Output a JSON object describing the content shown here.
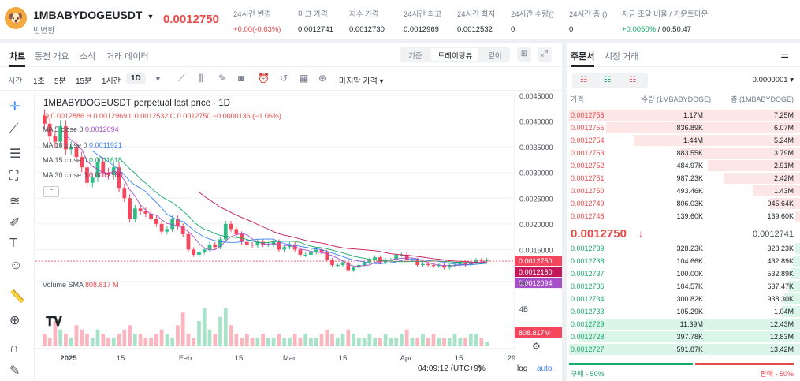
{
  "header": {
    "logo_icon": "doge-face-icon",
    "symbol": "1MBABYDOGEUSDT",
    "subtitle": "빈번한",
    "last_price": "0.0012750",
    "stats": [
      {
        "label": "24시간 변경",
        "value": "+0.00(-0.63%)",
        "color": "red"
      },
      {
        "label": "마크 가격",
        "value": "0.0012741",
        "color": ""
      },
      {
        "label": "지수 가격",
        "value": "0.0012730",
        "color": ""
      },
      {
        "label": "24시간 최고",
        "value": "0.0012969",
        "color": ""
      },
      {
        "label": "24시간 최저",
        "value": "0.0012532",
        "color": ""
      },
      {
        "label": "24시간 수량()",
        "value": "0",
        "color": ""
      },
      {
        "label": "24시간 총 ()",
        "value": "0",
        "color": ""
      },
      {
        "label": "자금 조달 비율 / 카운트다운",
        "value": "+0.0050%",
        "value2": " / 00:50:47",
        "color": "green"
      }
    ]
  },
  "chart_tabs": [
    "차트",
    "동전 개요",
    "소식",
    "거래 데이터"
  ],
  "view_modes": [
    "기준",
    "트레이딩뷰",
    "깊이"
  ],
  "intervals": [
    "시간",
    "1초",
    "5분",
    "15분",
    "1시간",
    "1D"
  ],
  "price_type": "마지막 가격",
  "legend": {
    "title": "1MBABYDOGEUSDT perpetual last price · 1D",
    "ohlc": "O 0.0012886  H 0.0012969  L 0.0012532  C 0.0012750  −0.0000136 (−1.06%)",
    "ma5": "MA 5 close 0",
    "ma5v": "0.0012094",
    "ma10": "MA 10 close 0",
    "ma10v": "0.0011921",
    "ma15": "MA 15 close 0",
    "ma15v": "0.0011618",
    "ma30": "MA 30 close 0",
    "ma30v": "0.0012180",
    "volume": "Volume SMA",
    "volumev": "808.817 M"
  },
  "chart_data": {
    "type": "candlestick",
    "y_ticks": [
      "0.0045000",
      "0.0040000",
      "0.0035000",
      "0.0030000",
      "0.0025000",
      "0.0020000",
      "0.0015000"
    ],
    "ylim": [
      0.001,
      0.0045
    ],
    "x_ticks": [
      "2025",
      "15",
      "Feb",
      "15",
      "Mar",
      "15",
      "Apr",
      "15",
      "29"
    ],
    "last_label": "0.0012750",
    "ma30_label": "0.0012180",
    "ma5_label": "0.0012094",
    "vol_label": "808.817M",
    "vol_ticks": [
      "8B",
      "4B"
    ],
    "closes": [
      0.00395,
      0.0037,
      0.0036,
      0.0039,
      0.00345,
      0.0035,
      0.0033,
      0.0031,
      0.0028,
      0.0029,
      0.0032,
      0.003,
      0.00295,
      0.0031,
      0.0027,
      0.0025,
      0.0021,
      0.0023,
      0.00225,
      0.0022,
      0.0021,
      0.002,
      0.00185,
      0.0019,
      0.0021,
      0.00195,
      0.0018,
      0.0015,
      0.0014,
      0.00145,
      0.0015,
      0.0016,
      0.00155,
      0.0017,
      0.002,
      0.0019,
      0.0018,
      0.00165,
      0.0016,
      0.00158,
      0.00165,
      0.0016,
      0.0016,
      0.00165,
      0.0015,
      0.00155,
      0.0016,
      0.0015,
      0.0014,
      0.0014,
      0.00145,
      0.0015,
      0.00145,
      0.0013,
      0.0012,
      0.0012,
      0.00125,
      0.0011,
      0.00115,
      0.0012,
      0.00125,
      0.0013,
      0.00135,
      0.00125,
      0.0013,
      0.0013,
      0.0014,
      0.0014,
      0.0013,
      0.0013,
      0.0012,
      0.00122,
      0.0012,
      0.00118,
      0.0012,
      0.00115,
      0.0012,
      0.0012,
      0.00125,
      0.0012,
      0.00125,
      0.0013,
      0.00128,
      0.0013
    ],
    "volumes": [
      3,
      2,
      6,
      4,
      3,
      2,
      5,
      4,
      3,
      2,
      4,
      3,
      2,
      2,
      3,
      4,
      5,
      3,
      3,
      2,
      2,
      3,
      4,
      3,
      2,
      5,
      8,
      3,
      2,
      6,
      9,
      4,
      3,
      7,
      9,
      5,
      3,
      2,
      3,
      2,
      2,
      3,
      2,
      2,
      3,
      2,
      2,
      3,
      2,
      3,
      2,
      2,
      3,
      4,
      3,
      2,
      3,
      4,
      3,
      2,
      2,
      3,
      2,
      2,
      3,
      2,
      2,
      3,
      4,
      2,
      2,
      3,
      2,
      3,
      2,
      2,
      2,
      3,
      2,
      2,
      3,
      3,
      2,
      1
    ]
  },
  "time_bar": {
    "time": "04:09:12 (UTC+9)",
    "pct": "%",
    "log": "log",
    "auto": "auto"
  },
  "orderbook": {
    "tabs": [
      "주문서",
      "시장 거래"
    ],
    "tick": "0.0000001",
    "headers": [
      "가격",
      "수량 (1MBABYDOGE)",
      "총 (1MBABYDOGE)"
    ],
    "asks": [
      {
        "p": "0.0012756",
        "q": "1.17M",
        "t": "7.25M",
        "f": 1
      },
      {
        "p": "0.0012755",
        "q": "836.89K",
        "t": "6.07M",
        "f": 0.84
      },
      {
        "p": "0.0012754",
        "q": "1.44M",
        "t": "5.24M",
        "f": 0.72
      },
      {
        "p": "0.0012753",
        "q": "883.55K",
        "t": "3.79M",
        "f": 0.52
      },
      {
        "p": "0.0012752",
        "q": "484.97K",
        "t": "2.91M",
        "f": 0.4
      },
      {
        "p": "0.0012751",
        "q": "987.23K",
        "t": "2.42M",
        "f": 0.33
      },
      {
        "p": "0.0012750",
        "q": "493.46K",
        "t": "1.43M",
        "f": 0.2
      },
      {
        "p": "0.0012749",
        "q": "806.03K",
        "t": "945.64K",
        "f": 0.13
      },
      {
        "p": "0.0012748",
        "q": "139.60K",
        "t": "139.60K",
        "f": 0.02
      }
    ],
    "mid_price": "0.0012750",
    "mid_mark": "0.0012741",
    "bids": [
      {
        "p": "0.0012739",
        "q": "328.23K",
        "t": "328.23K",
        "f": 0.02
      },
      {
        "p": "0.0012738",
        "q": "104.66K",
        "t": "432.89K",
        "f": 0.03
      },
      {
        "p": "0.0012737",
        "q": "100.00K",
        "t": "532.89K",
        "f": 0.04
      },
      {
        "p": "0.0012736",
        "q": "104.57K",
        "t": "637.47K",
        "f": 0.05
      },
      {
        "p": "0.0012734",
        "q": "300.82K",
        "t": "938.30K",
        "f": 0.07
      },
      {
        "p": "0.0012733",
        "q": "105.29K",
        "t": "1.04M",
        "f": 0.08
      },
      {
        "p": "0.0012729",
        "q": "11.39M",
        "t": "12.43M",
        "f": 0.93
      },
      {
        "p": "0.0012728",
        "q": "397.78K",
        "t": "12.83M",
        "f": 0.96
      },
      {
        "p": "0.0012727",
        "q": "591.87K",
        "t": "13.42M",
        "f": 1
      }
    ],
    "buy_ratio": "구매 - 50%",
    "sell_ratio": "판매 - 50%"
  }
}
